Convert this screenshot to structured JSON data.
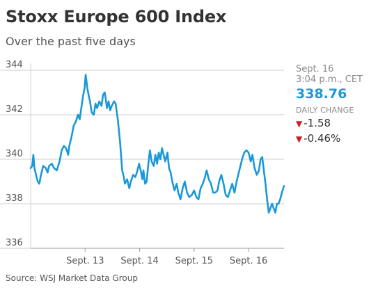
{
  "header": {
    "title": "Stoxx Europe 600 Index",
    "subtitle": "Over the past five days"
  },
  "info": {
    "date": "Sept. 16",
    "time": "3:04 p.m., CET",
    "price": "338.76",
    "daily_change_label": "DAILY CHANGE",
    "change_points": "-1.58",
    "change_percent": "-0.46%",
    "down_arrow": "▼"
  },
  "source": "Source: WSJ Market Data Group",
  "colors": {
    "line": "#1a99d6",
    "down": "#cc1f1f",
    "grid": "#cfcfcf",
    "axis": "#999999"
  },
  "chart_data": {
    "type": "line",
    "title": "Stoxx Europe 600 Index",
    "subtitle": "Over the past five days",
    "xlabel": "",
    "ylabel": "",
    "ylim": [
      336,
      344
    ],
    "yticks": [
      336,
      338,
      340,
      342,
      344
    ],
    "xticks": [
      {
        "label": "Sept. 13",
        "x": 1.0
      },
      {
        "label": "Sept. 14",
        "x": 2.0
      },
      {
        "label": "Sept. 15",
        "x": 3.0
      },
      {
        "label": "Sept. 16",
        "x": 4.0
      }
    ],
    "xlim": [
      0.0,
      4.65
    ],
    "grid": true,
    "series": [
      {
        "values": [
          [
            0.0,
            339.6
          ],
          [
            0.03,
            339.7
          ],
          [
            0.05,
            340.2
          ],
          [
            0.07,
            339.6
          ],
          [
            0.1,
            339.3
          ],
          [
            0.13,
            339.0
          ],
          [
            0.16,
            338.9
          ],
          [
            0.19,
            339.3
          ],
          [
            0.23,
            339.7
          ],
          [
            0.28,
            339.6
          ],
          [
            0.31,
            339.4
          ],
          [
            0.34,
            339.7
          ],
          [
            0.39,
            339.8
          ],
          [
            0.43,
            339.6
          ],
          [
            0.48,
            339.5
          ],
          [
            0.53,
            339.9
          ],
          [
            0.57,
            340.4
          ],
          [
            0.61,
            340.6
          ],
          [
            0.65,
            340.5
          ],
          [
            0.69,
            340.2
          ],
          [
            0.71,
            340.6
          ],
          [
            0.75,
            341.0
          ],
          [
            0.79,
            341.5
          ],
          [
            0.83,
            341.7
          ],
          [
            0.87,
            342.0
          ],
          [
            0.9,
            341.8
          ],
          [
            0.93,
            342.3
          ],
          [
            0.96,
            342.8
          ],
          [
            0.99,
            343.2
          ],
          [
            1.01,
            343.8
          ],
          [
            1.04,
            343.2
          ],
          [
            1.07,
            342.8
          ],
          [
            1.09,
            342.6
          ],
          [
            1.12,
            342.1
          ],
          [
            1.16,
            342.0
          ],
          [
            1.19,
            342.5
          ],
          [
            1.22,
            342.3
          ],
          [
            1.26,
            342.6
          ],
          [
            1.3,
            342.4
          ],
          [
            1.33,
            342.9
          ],
          [
            1.36,
            343.0
          ],
          [
            1.38,
            342.7
          ],
          [
            1.4,
            342.3
          ],
          [
            1.43,
            342.6
          ],
          [
            1.46,
            342.2
          ],
          [
            1.49,
            342.4
          ],
          [
            1.53,
            342.6
          ],
          [
            1.56,
            342.5
          ],
          [
            1.6,
            341.8
          ],
          [
            1.64,
            340.8
          ],
          [
            1.68,
            339.5
          ],
          [
            1.71,
            339.2
          ],
          [
            1.73,
            338.9
          ],
          [
            1.77,
            339.1
          ],
          [
            1.81,
            338.7
          ],
          [
            1.84,
            339.0
          ],
          [
            1.88,
            339.3
          ],
          [
            1.92,
            339.2
          ],
          [
            1.95,
            339.4
          ],
          [
            1.99,
            339.8
          ],
          [
            2.02,
            339.5
          ],
          [
            2.05,
            339.1
          ],
          [
            2.07,
            339.5
          ],
          [
            2.1,
            338.9
          ],
          [
            2.13,
            339.0
          ],
          [
            2.16,
            339.8
          ],
          [
            2.19,
            340.4
          ],
          [
            2.22,
            339.9
          ],
          [
            2.26,
            339.7
          ],
          [
            2.29,
            340.2
          ],
          [
            2.32,
            339.8
          ],
          [
            2.35,
            340.3
          ],
          [
            2.38,
            340.0
          ],
          [
            2.41,
            340.5
          ],
          [
            2.44,
            340.2
          ],
          [
            2.47,
            339.9
          ],
          [
            2.51,
            340.3
          ],
          [
            2.54,
            339.6
          ],
          [
            2.57,
            339.4
          ],
          [
            2.6,
            339.0
          ],
          [
            2.64,
            338.6
          ],
          [
            2.68,
            338.9
          ],
          [
            2.71,
            338.5
          ],
          [
            2.75,
            338.2
          ],
          [
            2.79,
            338.7
          ],
          [
            2.83,
            339.0
          ],
          [
            2.87,
            338.5
          ],
          [
            2.91,
            338.3
          ],
          [
            2.96,
            338.4
          ],
          [
            3.0,
            338.6
          ],
          [
            3.04,
            338.3
          ],
          [
            3.08,
            338.2
          ],
          [
            3.12,
            338.7
          ],
          [
            3.16,
            338.9
          ],
          [
            3.2,
            339.2
          ],
          [
            3.23,
            339.5
          ],
          [
            3.27,
            339.1
          ],
          [
            3.31,
            338.9
          ],
          [
            3.35,
            338.5
          ],
          [
            3.39,
            338.5
          ],
          [
            3.43,
            338.6
          ],
          [
            3.46,
            339.0
          ],
          [
            3.5,
            339.3
          ],
          [
            3.54,
            338.9
          ],
          [
            3.58,
            338.4
          ],
          [
            3.62,
            338.3
          ],
          [
            3.66,
            338.6
          ],
          [
            3.7,
            338.9
          ],
          [
            3.74,
            338.5
          ],
          [
            3.78,
            339.0
          ],
          [
            3.83,
            339.5
          ],
          [
            3.88,
            340.0
          ],
          [
            3.92,
            340.3
          ],
          [
            3.96,
            340.4
          ],
          [
            4.0,
            340.3
          ],
          [
            4.04,
            339.9
          ],
          [
            4.07,
            340.2
          ],
          [
            4.11,
            339.6
          ],
          [
            4.15,
            339.3
          ],
          [
            4.19,
            339.5
          ],
          [
            4.22,
            340.0
          ],
          [
            4.25,
            340.1
          ],
          [
            4.28,
            339.5
          ],
          [
            4.31,
            338.9
          ],
          [
            4.34,
            338.2
          ],
          [
            4.37,
            337.6
          ],
          [
            4.4,
            337.8
          ],
          [
            4.43,
            338.0
          ],
          [
            4.46,
            337.8
          ],
          [
            4.49,
            337.6
          ],
          [
            4.52,
            338.0
          ],
          [
            4.55,
            338.0
          ],
          [
            4.58,
            338.2
          ],
          [
            4.61,
            338.5
          ],
          [
            4.65,
            338.8
          ]
        ]
      }
    ]
  }
}
